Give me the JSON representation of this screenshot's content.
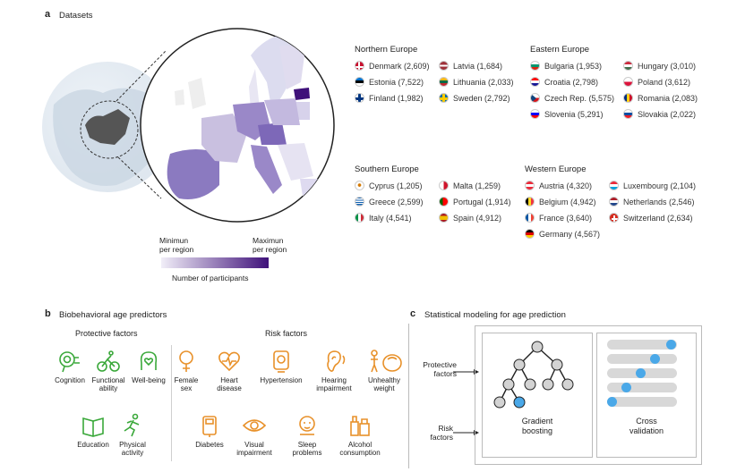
{
  "panel_a": {
    "letter": "a",
    "title": "Datasets",
    "legend": {
      "min_label": "Minimun\nper region",
      "max_label": "Maximun\nper region",
      "caption": "Number of participants",
      "colors": [
        "#f1eef8",
        "#3f117a"
      ]
    },
    "regions": [
      {
        "name": "Northern Europe",
        "countries": [
          {
            "label": "Denmark (2,609)",
            "flag": "denmark"
          },
          {
            "label": "Latvia (1,684)",
            "flag": "latvia"
          },
          {
            "label": "Estonia (7,522)",
            "flag": "estonia"
          },
          {
            "label": "Lithuania (2,033)",
            "flag": "lithuania"
          },
          {
            "label": "Finland (1,982)",
            "flag": "finland"
          },
          {
            "label": "Sweden (2,792)",
            "flag": "sweden"
          }
        ]
      },
      {
        "name": "Eastern Europe",
        "countries": [
          {
            "label": "Bulgaria (1,953)",
            "flag": "bulgaria"
          },
          {
            "label": "Hungary (3,010)",
            "flag": "hungary"
          },
          {
            "label": "Croatia (2,798)",
            "flag": "croatia"
          },
          {
            "label": "Poland (3,612)",
            "flag": "poland"
          },
          {
            "label": "Czech Rep. (5,575)",
            "flag": "czech"
          },
          {
            "label": "Romania (2,083)",
            "flag": "romania"
          },
          {
            "label": "Slovenia (5,291)",
            "flag": "slovenia"
          },
          {
            "label": "Slovakia (2,022)",
            "flag": "slovakia"
          }
        ]
      },
      {
        "name": "Southern Europe",
        "countries": [
          {
            "label": "Cyprus (1,205)",
            "flag": "cyprus"
          },
          {
            "label": "Malta (1,259)",
            "flag": "malta"
          },
          {
            "label": "Greece (2,599)",
            "flag": "greece"
          },
          {
            "label": "Portugal (1,914)",
            "flag": "portugal"
          },
          {
            "label": "Italy (4,541)",
            "flag": "italy"
          },
          {
            "label": "Spain (4,912)",
            "flag": "spain"
          }
        ]
      },
      {
        "name": "Western Europe",
        "countries": [
          {
            "label": "Austria (4,320)",
            "flag": "austria"
          },
          {
            "label": "Luxembourg (2,104)",
            "flag": "luxembourg"
          },
          {
            "label": "Belgium (4,942)",
            "flag": "belgium"
          },
          {
            "label": "Netherlands (2,546)",
            "flag": "netherlands"
          },
          {
            "label": "France (3,640)",
            "flag": "france"
          },
          {
            "label": "Switzerland (2,634)",
            "flag": "switzerland"
          },
          {
            "label": "Germany (4,567)",
            "flag": "germany"
          }
        ]
      }
    ]
  },
  "panel_b": {
    "letter": "b",
    "title": "Biobehavioral age predictors",
    "protective_header": "Protective factors",
    "risk_header": "Risk factors",
    "protective": [
      {
        "label": "Cognition",
        "icon": "brain-icon"
      },
      {
        "label": "Functional\nability",
        "icon": "cyclist-icon"
      },
      {
        "label": "Well-being",
        "icon": "heart-head-icon"
      },
      {
        "label": "Education",
        "icon": "book-icon"
      },
      {
        "label": "Physical\nactivity",
        "icon": "runner-icon"
      }
    ],
    "risk": [
      {
        "label": "Female\nsex",
        "icon": "female-sex-icon"
      },
      {
        "label": "Heart\ndisease",
        "icon": "heart-disease-icon"
      },
      {
        "label": "Hypertension",
        "icon": "blood-pressure-icon"
      },
      {
        "label": "Hearing\nimpairment",
        "icon": "ear-icon"
      },
      {
        "label": "Unhealthy\nweight",
        "icon": "scale-icon"
      },
      {
        "label": "Diabetes",
        "icon": "glucose-meter-icon"
      },
      {
        "label": "Visual\nimpairment",
        "icon": "eye-icon"
      },
      {
        "label": "Sleep\nproblems",
        "icon": "sleep-icon"
      },
      {
        "label": "Alcohol\nconsumption",
        "icon": "alcohol-icon"
      }
    ],
    "colors": {
      "protective": "#3aa83a",
      "risk": "#e8912a"
    }
  },
  "panel_c": {
    "letter": "c",
    "title": "Statistical modeling for age prediction",
    "input_protective": "Protective\nfactors",
    "input_risk": "Risk\nfactors",
    "model_label": "Gradient\nboosting",
    "cv_label": "Cross\nvalidation",
    "accent": "#4aa8e8"
  }
}
